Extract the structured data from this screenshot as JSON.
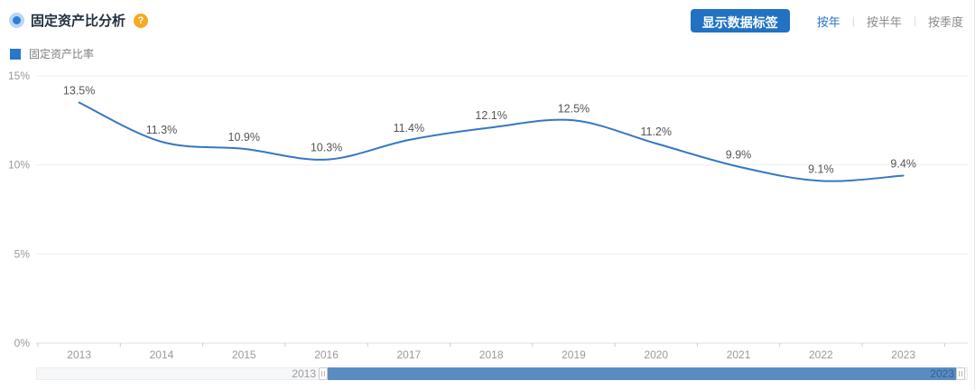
{
  "header": {
    "title": "固定资产比分析",
    "help_text": "?",
    "show_labels_button": "显示数据标签",
    "tab_divider": "|",
    "period_tabs": [
      {
        "label": "按年",
        "active": true
      },
      {
        "label": "按半年",
        "active": false
      },
      {
        "label": "按季度",
        "active": false
      }
    ]
  },
  "legend": {
    "label": "固定资产比率",
    "color": "#2878c8"
  },
  "chart_data": {
    "type": "line",
    "title": "固定资产比分析",
    "categories": [
      "2013",
      "2014",
      "2015",
      "2016",
      "2017",
      "2018",
      "2019",
      "2020",
      "2021",
      "2022",
      "2023"
    ],
    "series": [
      {
        "name": "固定资产比率",
        "values": [
          13.5,
          11.3,
          10.9,
          10.3,
          11.4,
          12.1,
          12.5,
          11.2,
          9.9,
          9.1,
          9.4
        ]
      }
    ],
    "unit": "%",
    "ylim": [
      0,
      15
    ],
    "ytick_values": [
      0,
      5,
      10,
      15
    ],
    "ytick_labels": [
      "0%",
      "5%",
      "10%",
      "15%"
    ],
    "grid": true,
    "smooth": true,
    "data_labels_visible": true,
    "legend_position": "top-left",
    "line_color": "#3577c2",
    "label_color": "#555555",
    "axis_label_color": "#999999",
    "gridline_color": "#ededed",
    "axisline_color": "#e0e0e0",
    "tick_color": "#cccccc"
  },
  "datazoom": {
    "start_label": "2013",
    "end_label": "2023",
    "window_color": "#5a8cc1"
  }
}
